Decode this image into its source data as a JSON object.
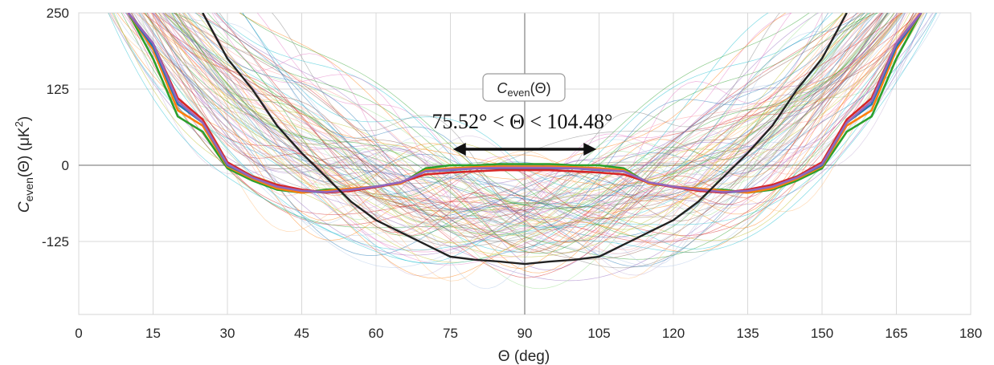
{
  "chart_data": {
    "type": "line",
    "xlabel": "Θ (deg)",
    "ylabel": {
      "symbol": "C",
      "subscript": "even",
      "rest": "(Θ) (μK",
      "sup": "2",
      "close": ")"
    },
    "xlim": [
      0,
      180
    ],
    "ylim": [
      -250,
      250
    ],
    "x_ticks": [
      "0",
      "15",
      "30",
      "45",
      "60",
      "75",
      "90",
      "105",
      "120",
      "135",
      "150",
      "165",
      "180"
    ],
    "y_ticks": [
      {
        "value": 250,
        "label": "250"
      },
      {
        "value": 125,
        "label": "125"
      },
      {
        "value": 0,
        "label": "0"
      },
      {
        "value": -125,
        "label": "-125"
      }
    ],
    "grid": true,
    "annotation": {
      "box_symbol": "C",
      "box_sub": "even",
      "box_rest": "(Θ)",
      "range_text": "75.52° < Θ < 104.48°",
      "arrow_from": 75.52,
      "arrow_to": 104.48
    },
    "highlighted_series": [
      {
        "color": "#2ca02c",
        "x": [
          10,
          15,
          20,
          25,
          30,
          35,
          40,
          45,
          50,
          55,
          60,
          65,
          70,
          75,
          80,
          85,
          90
        ],
        "y": [
          250,
          175,
          80,
          55,
          -5,
          -25,
          -40,
          -45,
          -40,
          -40,
          -35,
          -30,
          -5,
          0,
          0,
          2,
          2
        ]
      },
      {
        "color": "#ff7f0e",
        "x": [
          10,
          15,
          20,
          25,
          30,
          35,
          40,
          45,
          50,
          55,
          60,
          65,
          70,
          75,
          80,
          85,
          90
        ],
        "y": [
          250,
          190,
          90,
          65,
          -2,
          -22,
          -38,
          -45,
          -42,
          -38,
          -35,
          -30,
          -8,
          -5,
          -3,
          -2,
          -2
        ]
      },
      {
        "color": "#1f77b4",
        "x": [
          10,
          15,
          20,
          25,
          30,
          35,
          40,
          45,
          50,
          55,
          60,
          65,
          70,
          75,
          80,
          85,
          90
        ],
        "y": [
          250,
          195,
          100,
          70,
          0,
          -20,
          -35,
          -42,
          -45,
          -40,
          -35,
          -28,
          -10,
          -8,
          -5,
          -5,
          -5
        ]
      },
      {
        "color": "#d62728",
        "x": [
          10,
          15,
          20,
          25,
          30,
          35,
          40,
          45,
          50,
          55,
          60,
          65,
          70,
          75,
          80,
          85,
          90
        ],
        "y": [
          250,
          200,
          110,
          75,
          5,
          -18,
          -32,
          -40,
          -45,
          -42,
          -36,
          -28,
          -15,
          -12,
          -10,
          -8,
          -8
        ]
      },
      {
        "color": "#9467bd",
        "x": [
          10,
          15,
          20,
          25,
          30,
          35,
          40,
          45,
          50,
          55,
          60,
          65,
          70,
          75,
          80,
          85,
          90
        ],
        "y": [
          250,
          200,
          105,
          70,
          2,
          -20,
          -35,
          -42,
          -44,
          -40,
          -35,
          -28,
          -10,
          -7,
          -5,
          -4,
          -4
        ]
      },
      {
        "color": "#222222",
        "x": [
          25,
          30,
          35,
          40,
          45,
          50,
          55,
          60,
          65,
          70,
          75,
          80,
          85,
          90
        ],
        "y": [
          250,
          175,
          125,
          65,
          20,
          -20,
          -60,
          -90,
          -110,
          -130,
          -150,
          -155,
          -158,
          -162
        ]
      }
    ],
    "colors": {
      "green": "#2ca02c",
      "orange": "#ff7f0e",
      "blue": "#1f77b4",
      "red": "#d62728",
      "purple": "#9467bd",
      "black": "#222222"
    }
  }
}
